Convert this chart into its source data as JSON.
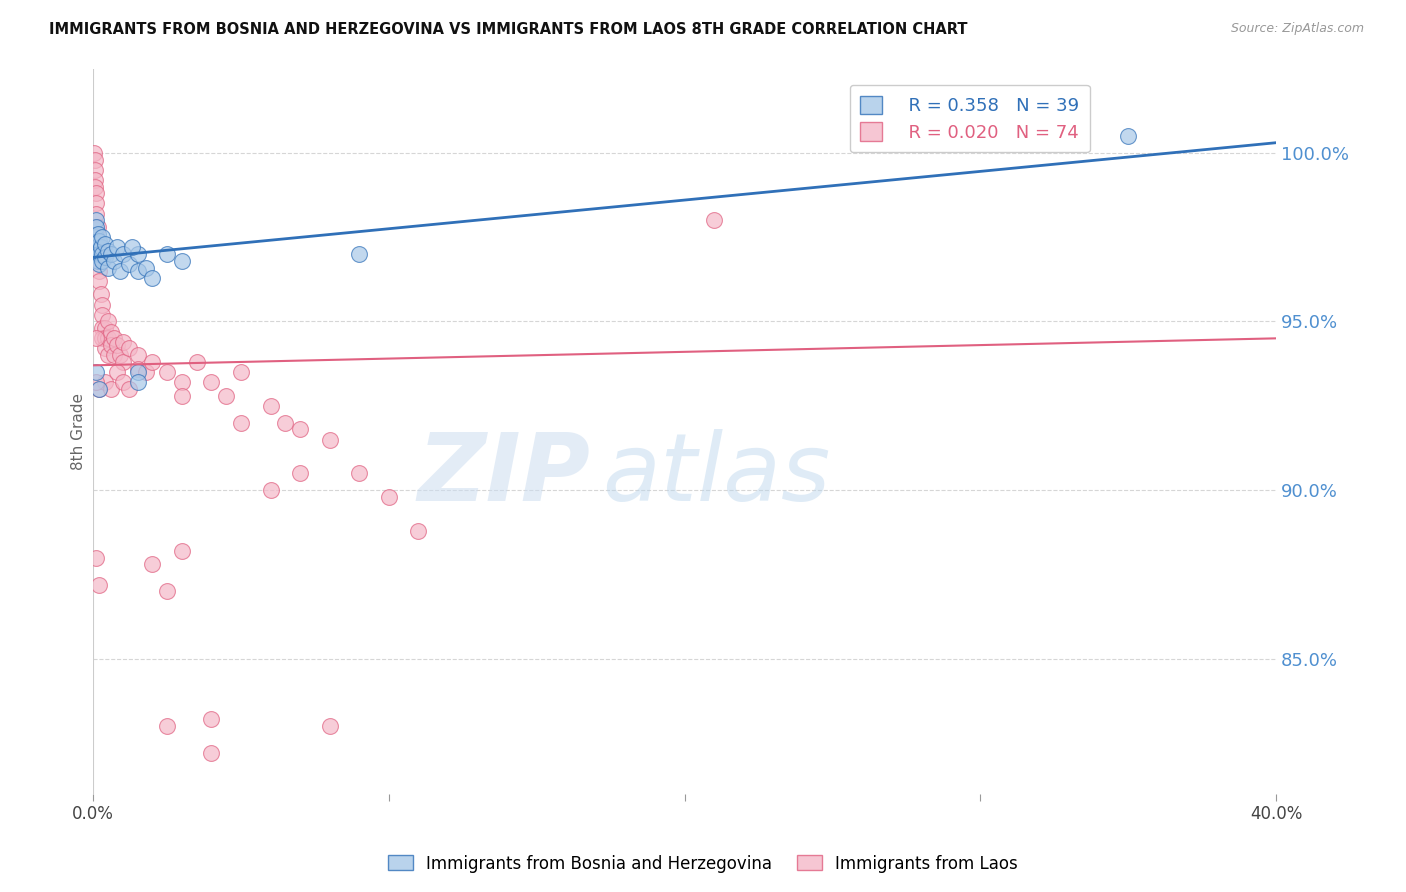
{
  "title": "IMMIGRANTS FROM BOSNIA AND HERZEGOVINA VS IMMIGRANTS FROM LAOS 8TH GRADE CORRELATION CHART",
  "source": "Source: ZipAtlas.com",
  "ylabel": "8th Grade",
  "yticks": [
    100.0,
    95.0,
    90.0,
    85.0
  ],
  "ytick_labels": [
    "100.0%",
    "95.0%",
    "90.0%",
    "85.0%"
  ],
  "legend_blue_r": "R = 0.358",
  "legend_blue_n": "N = 39",
  "legend_pink_r": "R = 0.020",
  "legend_pink_n": "N = 74",
  "blue_scatter": [
    [
      0.0005,
      97.2
    ],
    [
      0.0008,
      97.5
    ],
    [
      0.001,
      98.0
    ],
    [
      0.001,
      97.8
    ],
    [
      0.001,
      97.3
    ],
    [
      0.001,
      97.0
    ],
    [
      0.0015,
      97.6
    ],
    [
      0.0015,
      97.1
    ],
    [
      0.0015,
      96.8
    ],
    [
      0.002,
      97.4
    ],
    [
      0.002,
      97.0
    ],
    [
      0.002,
      96.7
    ],
    [
      0.0025,
      97.2
    ],
    [
      0.003,
      97.5
    ],
    [
      0.003,
      97.0
    ],
    [
      0.003,
      96.8
    ],
    [
      0.004,
      97.3
    ],
    [
      0.004,
      96.9
    ],
    [
      0.005,
      97.1
    ],
    [
      0.005,
      96.6
    ],
    [
      0.006,
      97.0
    ],
    [
      0.007,
      96.8
    ],
    [
      0.008,
      97.2
    ],
    [
      0.009,
      96.5
    ],
    [
      0.01,
      97.0
    ],
    [
      0.012,
      96.7
    ],
    [
      0.015,
      97.0
    ],
    [
      0.015,
      96.5
    ],
    [
      0.018,
      96.6
    ],
    [
      0.02,
      96.3
    ],
    [
      0.025,
      97.0
    ],
    [
      0.03,
      96.8
    ],
    [
      0.013,
      97.2
    ],
    [
      0.001,
      93.5
    ],
    [
      0.002,
      93.0
    ],
    [
      0.015,
      93.5
    ],
    [
      0.015,
      93.2
    ],
    [
      0.35,
      100.5
    ],
    [
      0.09,
      97.0
    ]
  ],
  "pink_scatter": [
    [
      0.0003,
      100.0
    ],
    [
      0.0005,
      99.8
    ],
    [
      0.0005,
      99.5
    ],
    [
      0.0005,
      99.2
    ],
    [
      0.0005,
      99.0
    ],
    [
      0.0008,
      98.8
    ],
    [
      0.001,
      98.5
    ],
    [
      0.001,
      98.2
    ],
    [
      0.001,
      97.5
    ],
    [
      0.0015,
      97.8
    ],
    [
      0.0015,
      97.2
    ],
    [
      0.002,
      97.0
    ],
    [
      0.002,
      96.8
    ],
    [
      0.002,
      96.5
    ],
    [
      0.002,
      96.2
    ],
    [
      0.0025,
      95.8
    ],
    [
      0.003,
      95.5
    ],
    [
      0.003,
      95.2
    ],
    [
      0.003,
      94.8
    ],
    [
      0.003,
      94.5
    ],
    [
      0.004,
      94.8
    ],
    [
      0.004,
      94.5
    ],
    [
      0.004,
      94.2
    ],
    [
      0.005,
      95.0
    ],
    [
      0.005,
      94.5
    ],
    [
      0.005,
      94.0
    ],
    [
      0.006,
      94.7
    ],
    [
      0.006,
      94.3
    ],
    [
      0.007,
      94.5
    ],
    [
      0.007,
      94.0
    ],
    [
      0.008,
      94.3
    ],
    [
      0.009,
      94.0
    ],
    [
      0.01,
      94.4
    ],
    [
      0.01,
      93.8
    ],
    [
      0.012,
      94.2
    ],
    [
      0.015,
      94.0
    ],
    [
      0.015,
      93.6
    ],
    [
      0.018,
      93.5
    ],
    [
      0.02,
      93.8
    ],
    [
      0.025,
      93.5
    ],
    [
      0.03,
      93.2
    ],
    [
      0.03,
      92.8
    ],
    [
      0.035,
      93.8
    ],
    [
      0.04,
      93.2
    ],
    [
      0.045,
      92.8
    ],
    [
      0.05,
      93.5
    ],
    [
      0.06,
      92.5
    ],
    [
      0.065,
      92.0
    ],
    [
      0.07,
      91.8
    ],
    [
      0.08,
      91.5
    ],
    [
      0.09,
      90.5
    ],
    [
      0.1,
      89.8
    ],
    [
      0.11,
      88.8
    ],
    [
      0.02,
      87.8
    ],
    [
      0.025,
      87.0
    ],
    [
      0.04,
      83.2
    ],
    [
      0.04,
      82.2
    ],
    [
      0.025,
      83.0
    ],
    [
      0.002,
      93.0
    ],
    [
      0.004,
      93.2
    ],
    [
      0.006,
      93.0
    ],
    [
      0.008,
      93.5
    ],
    [
      0.01,
      93.2
    ],
    [
      0.012,
      93.0
    ],
    [
      0.001,
      88.0
    ],
    [
      0.002,
      87.2
    ],
    [
      0.06,
      90.0
    ],
    [
      0.07,
      90.5
    ],
    [
      0.05,
      92.0
    ],
    [
      0.08,
      83.0
    ],
    [
      0.03,
      88.2
    ],
    [
      0.21,
      98.0
    ],
    [
      0.001,
      93.2
    ],
    [
      0.001,
      94.5
    ]
  ],
  "blue_color": "#a8c8e8",
  "pink_color": "#f4b8c8",
  "blue_line_color": "#3070b8",
  "pink_line_color": "#e06080",
  "background_color": "#ffffff",
  "grid_color": "#cccccc",
  "right_axis_color": "#5090d0",
  "watermark_zip": "ZIP",
  "watermark_atlas": "atlas",
  "xlim": [
    0.0,
    0.4
  ],
  "ylim": [
    81.0,
    102.5
  ],
  "xtick_positions": [
    0.0,
    0.1,
    0.2,
    0.3,
    0.4
  ],
  "xtick_labels": [
    "0.0%",
    "",
    "",
    "",
    "40.0%"
  ]
}
